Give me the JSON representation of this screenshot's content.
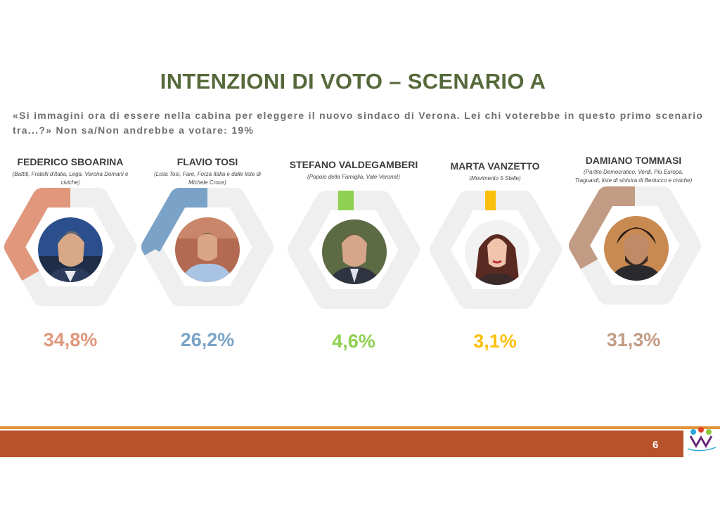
{
  "title": "INTENZIONI DI VOTO – SCENARIO A",
  "question": "«Si immagini ora di essere nella cabina per eleggere il nuovo sindaco di Verona. Lei chi voterebbe in questo primo scenario tra...?» Non sa/Non andrebbe a votare: 19%",
  "chart_data": {
    "type": "pie",
    "categories": [
      "FEDERICO SBOARINA",
      "FLAVIO TOSI",
      "STEFANO VALDEGAMBERI",
      "MARTA  VANZETTO",
      "DAMIANO TOMMASI"
    ],
    "values": [
      34.8,
      26.2,
      4.6,
      3.1,
      31.3
    ],
    "labels": [
      "34,8%",
      "26,2%",
      "4,6%",
      "3,1%",
      "31,3%"
    ],
    "colors": [
      "#e0977b",
      "#7ba3c8",
      "#8ed04f",
      "#fbbf0b",
      "#c29b84"
    ]
  },
  "candidates": [
    {
      "name": "FEDERICO SBOARINA",
      "sub": "(Battiti, Fratelli d'Italia, Lega, Verona Domani e civiche)",
      "pct": "34,8%",
      "value": 34.8,
      "color": "#e0977b"
    },
    {
      "name": "FLAVIO TOSI",
      "sub": "(Lista Tosi, Fare, Forza Italia e dalle liste di Michele Croce)",
      "pct": "26,2%",
      "value": 26.2,
      "color": "#7ba3c8"
    },
    {
      "name": "STEFANO VALDEGAMBERI",
      "sub": "(Popolo della Famiglia, Vale Verona!)",
      "pct": "4,6%",
      "value": 4.6,
      "color": "#8ed04f"
    },
    {
      "name": "MARTA  VANZETTO",
      "sub": "(Movimento 5 Stelle)",
      "pct": "3,1%",
      "value": 3.1,
      "color": "#fbbf0b"
    },
    {
      "name": "DAMIANO TOMMASI",
      "sub": "(Partito Democratico, Verdi, Più Europa, Traguardi, liste di sinistra di Bertucco e civiche)",
      "pct": "31,3%",
      "value": 31.3,
      "color": "#c29b84"
    }
  ],
  "footer": {
    "page": "6"
  },
  "logo_icon": "winpoll-logo"
}
